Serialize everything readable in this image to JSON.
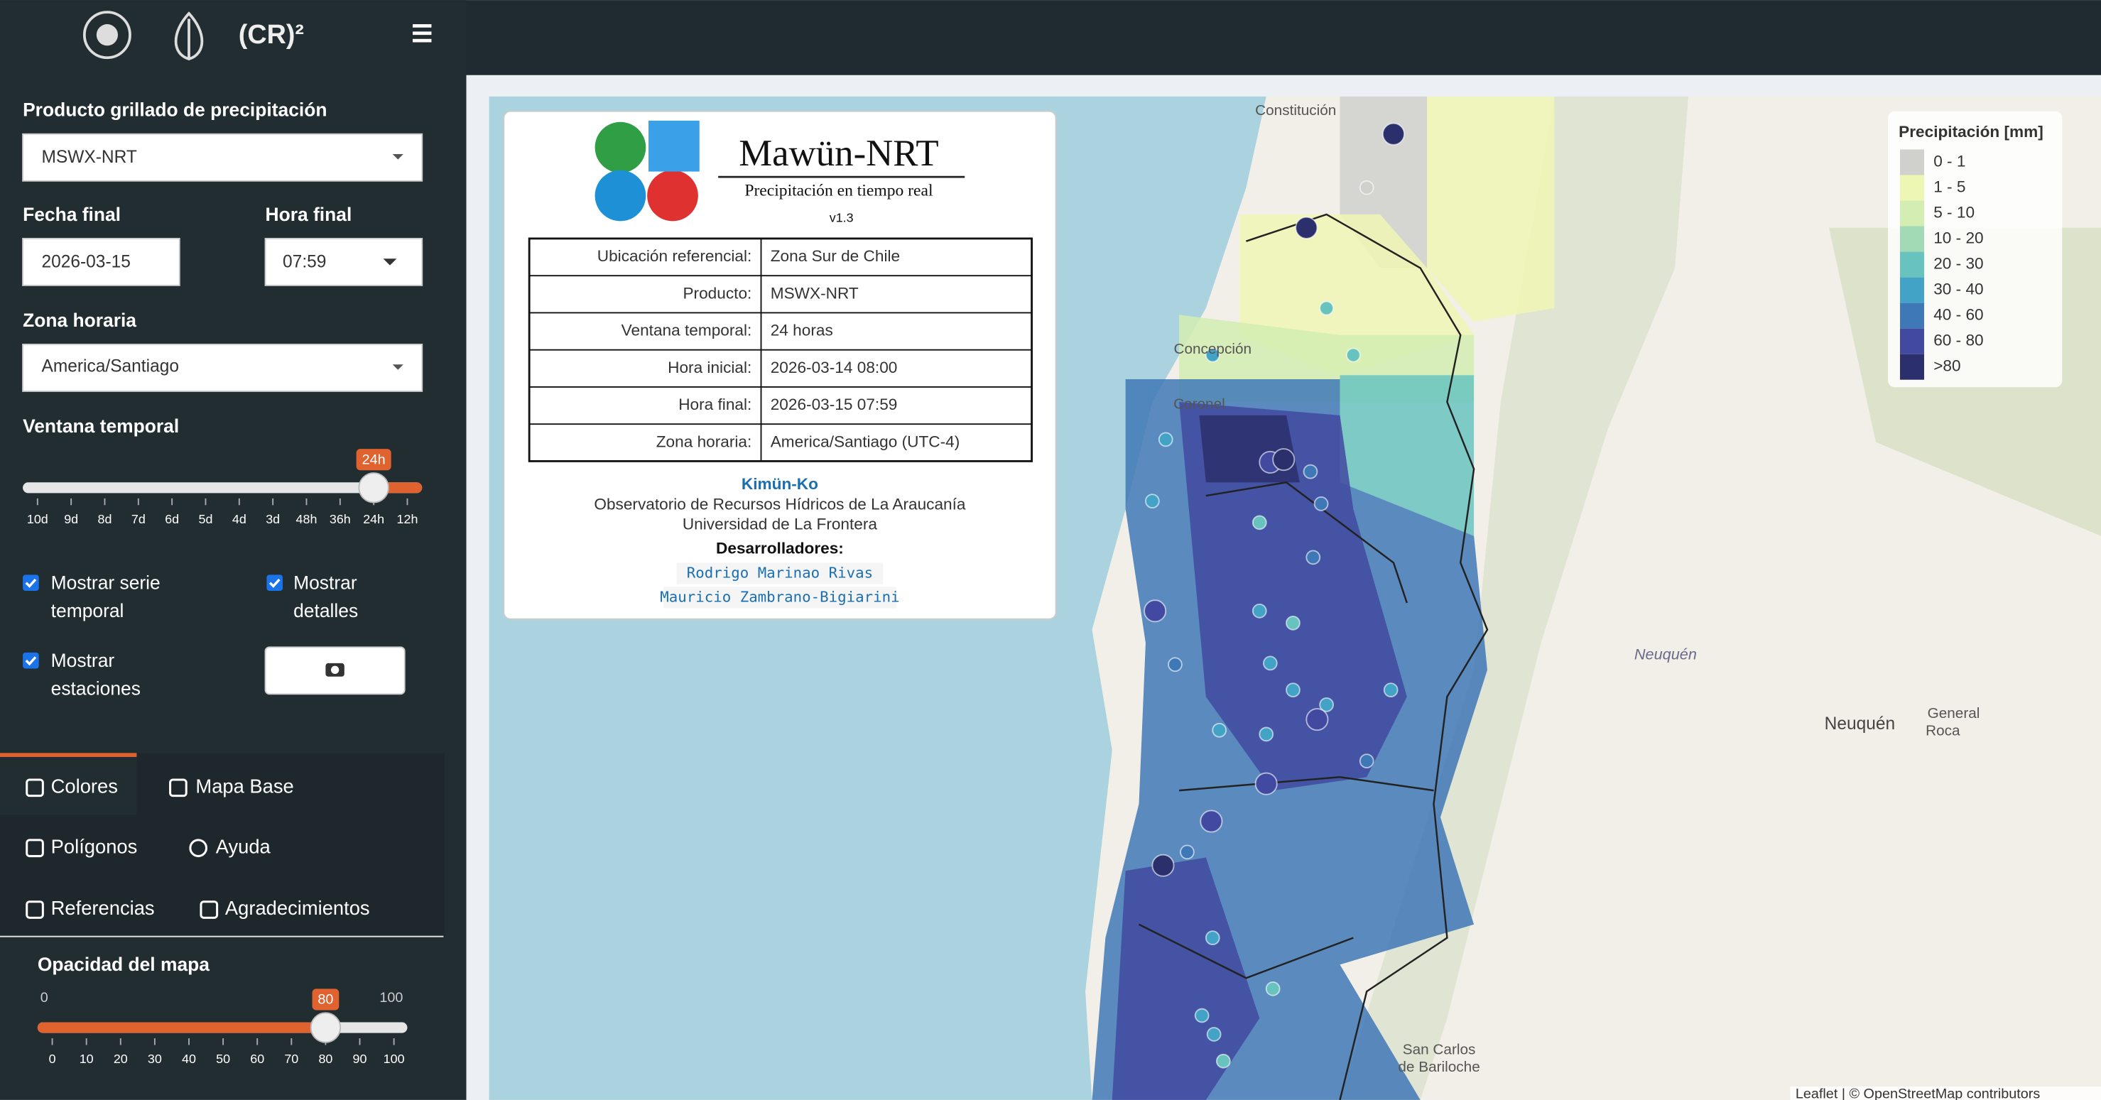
{
  "header": {
    "brand": "(CR)²"
  },
  "sidebar": {
    "product_label": "Producto grillado de precipitación",
    "product_value": "MSWX-NRT",
    "date_label": "Fecha final",
    "date_value": "2026-03-15",
    "hour_label": "Hora final",
    "hour_value": "07:59",
    "tz_label": "Zona horaria",
    "tz_value": "America/Santiago",
    "window_label": "Ventana temporal",
    "window_current": "24h",
    "window_ticks": [
      "10d",
      "9d",
      "8d",
      "7d",
      "6d",
      "5d",
      "4d",
      "3d",
      "48h",
      "36h",
      "24h",
      "12h"
    ],
    "checkboxes": [
      [
        "Mostrar serie",
        "temporal"
      ],
      [
        "Mostrar",
        "detalles"
      ],
      [
        "Mostrar",
        "estaciones"
      ]
    ],
    "tabs": [
      "Colores",
      "Mapa Base",
      "Polígonos",
      "Ayuda",
      "Referencias",
      "Agradecimientos"
    ],
    "opacity_label": "Opacidad del mapa",
    "opacity_min": 0,
    "opacity_max": 100,
    "opacity_value": 80,
    "opacity_ticks": [
      0,
      10,
      20,
      30,
      40,
      50,
      60,
      70,
      80,
      90,
      100
    ]
  },
  "info_panel": {
    "title": "Mawün-NRT",
    "subtitle": "Precipitación en tiempo real",
    "version": "v1.3",
    "rows": [
      [
        "Ubicación referencial:",
        "Zona Sur de Chile"
      ],
      [
        "Producto:",
        "MSWX-NRT"
      ],
      [
        "Ventana temporal:",
        "24 horas"
      ],
      [
        "Hora inicial:",
        "2026-03-14 08:00"
      ],
      [
        "Hora final:",
        "2026-03-15 07:59"
      ],
      [
        "Zona horaria:",
        "America/Santiago (UTC-4)"
      ]
    ],
    "org": "Kimün-Ko",
    "lines": [
      "Observatorio de Recursos Hídricos de La Araucanía",
      "Universidad de La Frontera"
    ],
    "dev_label": "Desarrolladores:",
    "devs": [
      "Rodrigo Marinao Rivas",
      "Mauricio Zambrano-Bigiarini"
    ]
  },
  "legend": {
    "title": "Precipitación [mm]",
    "items": [
      {
        "label": "0 - 1",
        "color": "#d0d0cc"
      },
      {
        "label": "1 - 5",
        "color": "#eef6b4"
      },
      {
        "label": "5 - 10",
        "color": "#d3edb2"
      },
      {
        "label": "10 - 20",
        "color": "#a3dab6"
      },
      {
        "label": "20 - 30",
        "color": "#68c3bf"
      },
      {
        "label": "30 - 40",
        "color": "#43a3c6"
      },
      {
        "label": "40 - 60",
        "color": "#3f78b6"
      },
      {
        "label": "60 - 80",
        "color": "#4149a0"
      },
      {
        "label": ">80",
        "color": "#2b2f6c"
      }
    ]
  },
  "map": {
    "labels": [
      "Constitución",
      "Concepción",
      "Coronel",
      "Neuquén",
      "Neuquén",
      "General",
      "Roca",
      "San Carlos",
      "de Bariloche"
    ],
    "attribution": "Leaflet | © OpenStreetMap contributors"
  }
}
